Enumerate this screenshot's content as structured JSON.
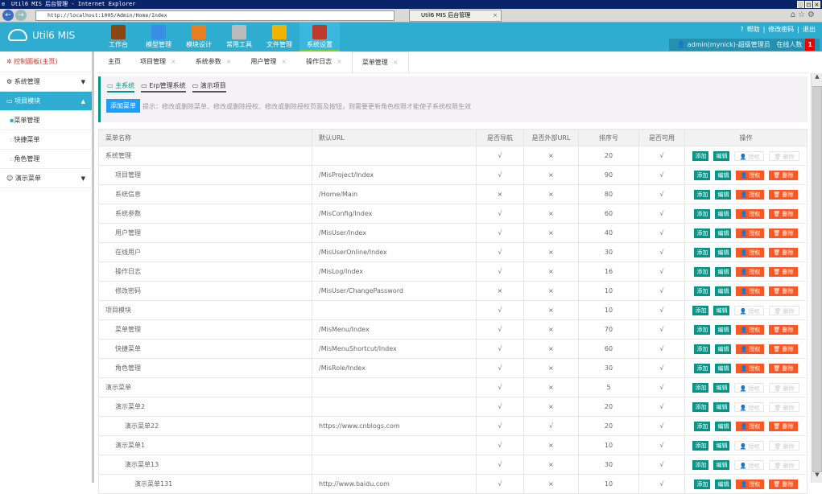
{
  "browser": {
    "title": "Util6 MIS 后台管理 - Internet Explorer",
    "url": "http://localhost:1005/Admin/Home/Index",
    "tab": "Util6 MIS 后台管理"
  },
  "header": {
    "logo": "Util6 MIS",
    "modules": [
      {
        "label": "工作台",
        "color": "#8b4513"
      },
      {
        "label": "模型管理",
        "color": "#3a8ee6"
      },
      {
        "label": "模块设计",
        "color": "#e67e22"
      },
      {
        "label": "常用工具",
        "color": "#bbbbbb"
      },
      {
        "label": "文件管理",
        "color": "#f0b400"
      },
      {
        "label": "系统设置",
        "color": "#c0392b"
      }
    ],
    "active_module": 5,
    "help": "帮助",
    "change_password": "修改密码",
    "logout": "退出",
    "user": "admin(mynick)-超级管理员",
    "online_label": "在线人数",
    "online_count": "1"
  },
  "sidebar": {
    "home": "控制面板(主页)",
    "groups": [
      {
        "label": "系统管理",
        "open": false
      },
      {
        "label": "项目模块",
        "open": true,
        "items": [
          "菜单管理",
          "快捷菜单",
          "角色管理"
        ]
      },
      {
        "label": "演示菜单",
        "open": false
      }
    ]
  },
  "tabs": [
    "主页",
    "项目管理",
    "系统参数",
    "用户管理",
    "操作日志",
    "菜单管理"
  ],
  "panel": {
    "systems": [
      "主系统",
      "Erp管理系统",
      "演示项目"
    ],
    "add_button": "添加菜单",
    "tip": "提示：修改或删除菜单、修改或删除授权、修改或删除授权页面及按钮，则需要更新角色权限才能使子系统权限生效"
  },
  "table": {
    "headers": [
      "菜单名称",
      "默认URL",
      "是否导航",
      "是否外部URL",
      "排序号",
      "是否可用",
      "操作"
    ],
    "buttons": {
      "add": "添加",
      "edit": "编辑",
      "auth": "授权",
      "del": "删除"
    },
    "rows": [
      [
        "系统管理",
        0,
        "",
        "√",
        "×",
        "20",
        "√",
        false
      ],
      [
        "项目管理",
        1,
        "/MisProject/Index",
        "√",
        "×",
        "90",
        "√",
        true
      ],
      [
        "系统信息",
        1,
        "/Home/Main",
        "×",
        "×",
        "80",
        "√",
        true
      ],
      [
        "系统参数",
        1,
        "/MisConfig/Index",
        "√",
        "×",
        "60",
        "√",
        true
      ],
      [
        "用户管理",
        1,
        "/MisUser/Index",
        "√",
        "×",
        "40",
        "√",
        true
      ],
      [
        "在线用户",
        1,
        "/MisUserOnline/Index",
        "√",
        "×",
        "30",
        "√",
        true
      ],
      [
        "操作日志",
        1,
        "/MisLog/Index",
        "√",
        "×",
        "16",
        "√",
        true
      ],
      [
        "修改密码",
        1,
        "/MisUser/ChangePassword",
        "×",
        "×",
        "10",
        "√",
        true
      ],
      [
        "项目模块",
        0,
        "",
        "√",
        "×",
        "10",
        "√",
        false
      ],
      [
        "菜单管理",
        1,
        "/MisMenu/Index",
        "√",
        "×",
        "70",
        "√",
        true
      ],
      [
        "快捷菜单",
        1,
        "/MisMenuShortcut/Index",
        "√",
        "×",
        "60",
        "√",
        true
      ],
      [
        "角色管理",
        1,
        "/MisRole/Index",
        "√",
        "×",
        "30",
        "√",
        true
      ],
      [
        "演示菜单",
        0,
        "",
        "√",
        "×",
        "5",
        "√",
        false
      ],
      [
        "演示菜单2",
        1,
        "",
        "√",
        "×",
        "20",
        "√",
        false
      ],
      [
        "演示菜单22",
        2,
        "https://www.cnblogs.com",
        "√",
        "√",
        "20",
        "√",
        true
      ],
      [
        "演示菜单1",
        1,
        "",
        "√",
        "×",
        "10",
        "√",
        false
      ],
      [
        "演示菜单13",
        2,
        "",
        "√",
        "×",
        "30",
        "√",
        false
      ],
      [
        "演示菜单131",
        3,
        "http://www.baidu.com",
        "√",
        "×",
        "10",
        "√",
        true
      ]
    ]
  }
}
